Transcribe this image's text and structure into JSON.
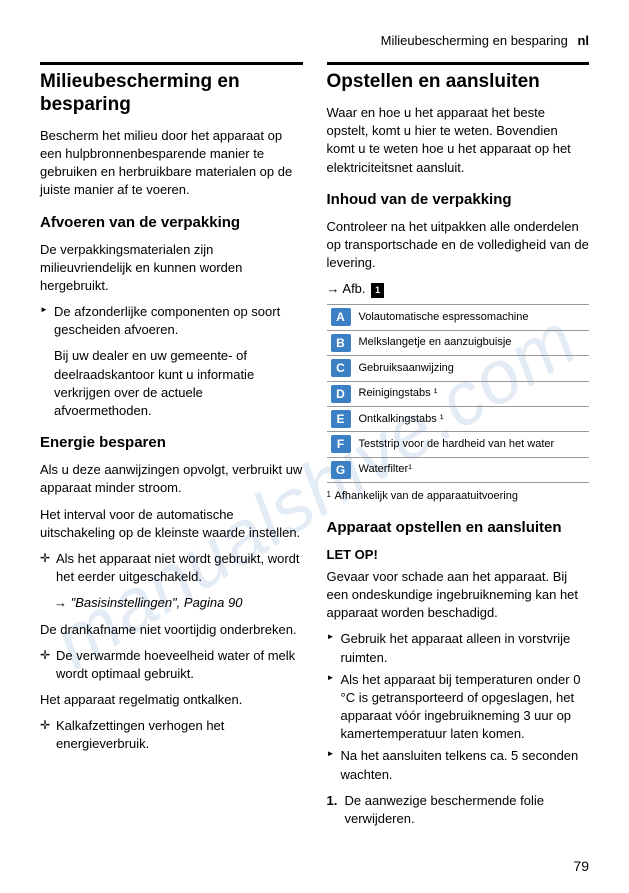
{
  "header": {
    "title": "Milieubescherming en besparing",
    "lang": "nl"
  },
  "left": {
    "h1": "Milieubescherming en besparing",
    "intro": "Bescherm het milieu door het apparaat op een hulpbronnenbesparende manier te gebruiken en herbruikbare materialen op de juiste manier af te voeren.",
    "h2a": "Afvoeren van de verpakking",
    "p_afv": "De verpakkingsmaterialen zijn milieuvriendelijk en kunnen worden hergebruikt.",
    "bullet1": "De afzonderlijke componenten op soort gescheiden afvoeren.",
    "sub1": "Bij uw dealer en uw gemeente- of deelraadskantoor kunt u informatie verkrijgen over de actuele afvoermethoden.",
    "h2b": "Energie besparen",
    "p_energie1": "Als u deze aanwijzingen opvolgt, verbruikt uw apparaat minder stroom.",
    "p_energie2": "Het interval voor de automatische uitschakeling op de kleinste waarde instellen.",
    "plus1": "Als het apparaat niet wordt gebruikt, wordt het eerder uitgeschakeld.",
    "ref1": "→ \"Basisinstellingen\", Pagina 90",
    "p_drank": "De drankafname niet voortijdig onderbreken.",
    "plus2": "De verwarmde hoeveelheid water of melk wordt optimaal gebruikt.",
    "p_ontkalk": "Het apparaat regelmatig ontkalken.",
    "plus3": "Kalkafzettingen verhogen het energieverbruik."
  },
  "right": {
    "h1": "Opstellen en aansluiten",
    "intro": "Waar en hoe u het apparaat het beste opstelt, komt u hier te weten. Bovendien komt u te weten hoe u het apparaat op het elektriciteitsnet aansluit.",
    "h2a": "Inhoud van de verpakking",
    "p_check": "Controleer na het uitpakken alle onderdelen op transportschade en de volledigheid van de levering.",
    "afb_label": "→ Afb.",
    "afb_num": "1",
    "table": [
      {
        "letter": "A",
        "text": "Volautomatische espressomachine"
      },
      {
        "letter": "B",
        "text": "Melkslangetje en aanzuigbuisje"
      },
      {
        "letter": "C",
        "text": "Gebruiksaanwijzing"
      },
      {
        "letter": "D",
        "text": "Reinigingstabs ¹"
      },
      {
        "letter": "E",
        "text": "Ontkalkingstabs ¹"
      },
      {
        "letter": "F",
        "text": "Teststrip voor de hardheid van het water"
      },
      {
        "letter": "G",
        "text": "Waterfilter¹"
      }
    ],
    "footnote": "Afhankelijk van de apparaatuitvoering",
    "h2b": "Apparaat opstellen en aansluiten",
    "letop": "LET OP!",
    "p_gevaar": "Gevaar voor schade aan het apparaat. Bij een ondeskundige ingebruikneming kan het apparaat worden beschadigd.",
    "bullets": [
      "Gebruik het apparaat alleen in vorstvrije ruimten.",
      "Als het apparaat bij temperaturen onder 0 °C is getransporteerd of opgeslagen, het apparaat vóór ingebruikneming 3 uur op kamertemperatuur laten komen.",
      "Na het aansluiten telkens ca. 5 seconden wachten."
    ],
    "step1": "De aanwezige beschermende folie verwijderen."
  },
  "page_number": "79",
  "watermark": "manualshive.com"
}
